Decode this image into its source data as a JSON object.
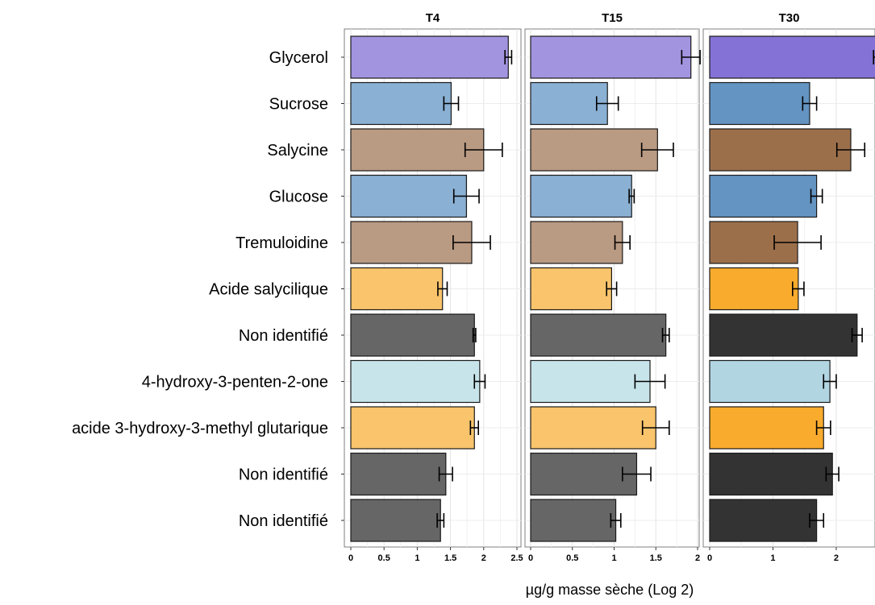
{
  "chart_data": {
    "type": "bar",
    "orientation": "horizontal",
    "xlabel": "µg/g masse sèche (Log 2)",
    "categories": [
      "Glycerol",
      "Sucrose",
      "Salycine",
      "Glucose",
      "Tremuloidine",
      "Acide salycilique",
      "Non identifié",
      "4-hydroxy-3-penten-2-one",
      "acide 3-hydroxy-3-methyl glutarique",
      "Non identifié",
      "Non identifié"
    ],
    "facets": [
      {
        "title": "T4",
        "xlim": [
          0,
          2.5
        ],
        "ticks": [
          "0",
          "0.5",
          "1",
          "1.5",
          "2",
          "2.5"
        ],
        "tick_values": [
          0,
          0.5,
          1,
          1.5,
          2,
          2.5
        ],
        "values": [
          2.37,
          1.51,
          2.0,
          1.74,
          1.82,
          1.38,
          1.86,
          1.94,
          1.86,
          1.43,
          1.35
        ],
        "errors": [
          0.05,
          0.11,
          0.28,
          0.19,
          0.28,
          0.07,
          0.02,
          0.08,
          0.06,
          0.1,
          0.05
        ],
        "colors": [
          "#a394e0",
          "#8ab0d3",
          "#b99a82",
          "#8ab0d3",
          "#b99a82",
          "#f9c46c",
          "#666666",
          "#c8e4eb",
          "#f9c46c",
          "#666666",
          "#666666"
        ]
      },
      {
        "title": "T15",
        "xlim": [
          0,
          2
        ],
        "ticks": [
          "0",
          "0.5",
          "1",
          "1.5",
          "2"
        ],
        "tick_values": [
          0,
          0.5,
          1,
          1.5,
          2
        ],
        "values": [
          1.92,
          0.92,
          1.52,
          1.21,
          1.1,
          0.97,
          1.62,
          1.43,
          1.5,
          1.27,
          1.02
        ],
        "errors": [
          0.11,
          0.13,
          0.19,
          0.03,
          0.09,
          0.06,
          0.04,
          0.18,
          0.16,
          0.17,
          0.06
        ],
        "colors": [
          "#a394e0",
          "#8ab0d3",
          "#b99a82",
          "#8ab0d3",
          "#b99a82",
          "#f9c46c",
          "#666666",
          "#c8e4eb",
          "#f9c46c",
          "#666666",
          "#666666"
        ]
      },
      {
        "title": "T30",
        "xlim": [
          0,
          2.6
        ],
        "ticks": [
          "0",
          "1",
          "2"
        ],
        "tick_values": [
          0,
          1,
          2
        ],
        "values": [
          2.65,
          1.58,
          2.23,
          1.69,
          1.39,
          1.4,
          2.33,
          1.9,
          1.8,
          1.94,
          1.69
        ],
        "errors": [
          0.06,
          0.11,
          0.22,
          0.09,
          0.37,
          0.09,
          0.08,
          0.1,
          0.11,
          0.1,
          0.11
        ],
        "colors": [
          "#8572d6",
          "#6394c2",
          "#9c6f4b",
          "#6394c2",
          "#9c6f4b",
          "#f9ab2d",
          "#333333",
          "#b2d5e2",
          "#f9ab2d",
          "#333333",
          "#333333"
        ]
      }
    ]
  }
}
